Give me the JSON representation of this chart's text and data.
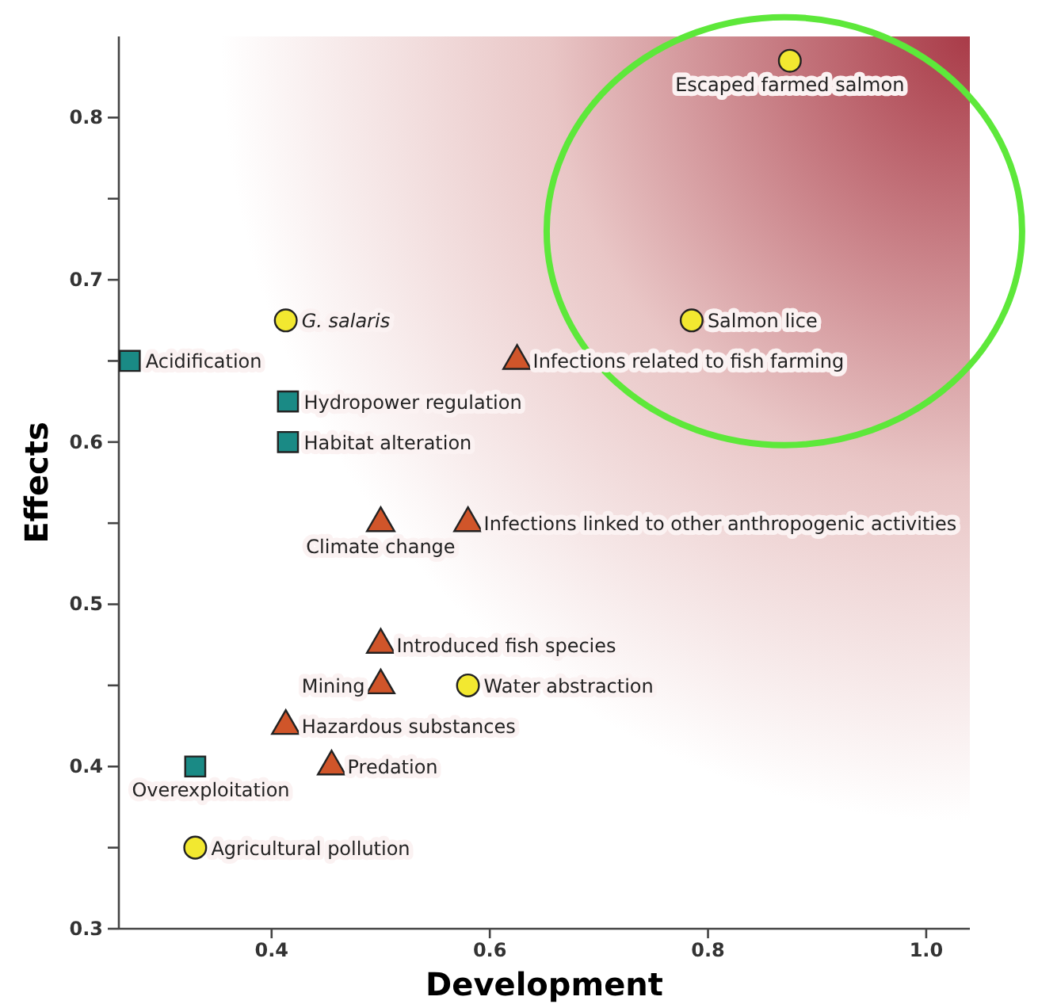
{
  "chart_data": {
    "type": "scatter",
    "xlabel": "Development",
    "ylabel": "Effects",
    "xlim": [
      0.26,
      1.04
    ],
    "xticks": [
      0.4,
      0.6,
      0.8,
      {
        "value": 1,
        "label": "1.0"
      }
    ],
    "ylim": [
      0.3,
      0.85
    ],
    "yticks": [
      0.3,
      {
        "value": 0.35,
        "label": null
      },
      0.4,
      {
        "value": 0.45,
        "label": null
      },
      0.5,
      {
        "value": 0.55,
        "label": null
      },
      0.6,
      {
        "value": 0.65,
        "label": null
      },
      0.7,
      {
        "value": 0.75,
        "label": null
      },
      0.8
    ],
    "grid": false,
    "series": [
      {
        "color": "#f2e830",
        "marker": "circle",
        "x": [
          0.875,
          0.785,
          0.413,
          0.58,
          0.33
        ],
        "values": [
          0.835,
          0.675,
          0.675,
          0.45,
          0.35
        ]
      },
      {
        "color": "#d0552a",
        "marker": "triangle",
        "x": [
          0.625,
          0.5,
          0.58,
          0.5,
          0.5,
          0.413,
          0.455
        ],
        "values": [
          0.65,
          0.55,
          0.55,
          0.475,
          0.45,
          0.425,
          0.4
        ]
      },
      {
        "color": "#1a8a85",
        "marker": "square",
        "x": [
          0.27,
          0.415,
          0.415,
          0.33
        ],
        "values": [
          0.65,
          0.625,
          0.6,
          0.4
        ]
      }
    ],
    "annotations": [
      {
        "text": "Escaped farmed salmon",
        "x": 0.875,
        "y": 0.835
      },
      {
        "text": "Salmon lice",
        "x": 0.785,
        "y": 0.675
      },
      {
        "text": "G. salaris",
        "x": 0.413,
        "y": 0.675
      },
      {
        "text": "Water abstraction",
        "x": 0.58,
        "y": 0.45
      },
      {
        "text": "Agricultural pollution",
        "x": 0.33,
        "y": 0.35
      },
      {
        "text": "Infections related to fish farming",
        "x": 0.625,
        "y": 0.65
      },
      {
        "text": "Climate change",
        "x": 0.5,
        "y": 0.55
      },
      {
        "text": "Infections linked to other anthropogenic activities",
        "x": 0.58,
        "y": 0.55
      },
      {
        "text": "Introduced fish species",
        "x": 0.5,
        "y": 0.475
      },
      {
        "text": "Mining",
        "x": 0.5,
        "y": 0.45
      },
      {
        "text": "Hazardous substances",
        "x": 0.413,
        "y": 0.425
      },
      {
        "text": "Predation",
        "x": 0.455,
        "y": 0.4
      },
      {
        "text": "Acidification",
        "x": 0.27,
        "y": 0.65
      },
      {
        "text": "Hydropower regulation",
        "x": 0.415,
        "y": 0.625
      },
      {
        "text": "Habitat alteration",
        "x": 0.415,
        "y": 0.6
      },
      {
        "text": "Overexploitation",
        "x": 0.33,
        "y": 0.4
      }
    ]
  }
}
